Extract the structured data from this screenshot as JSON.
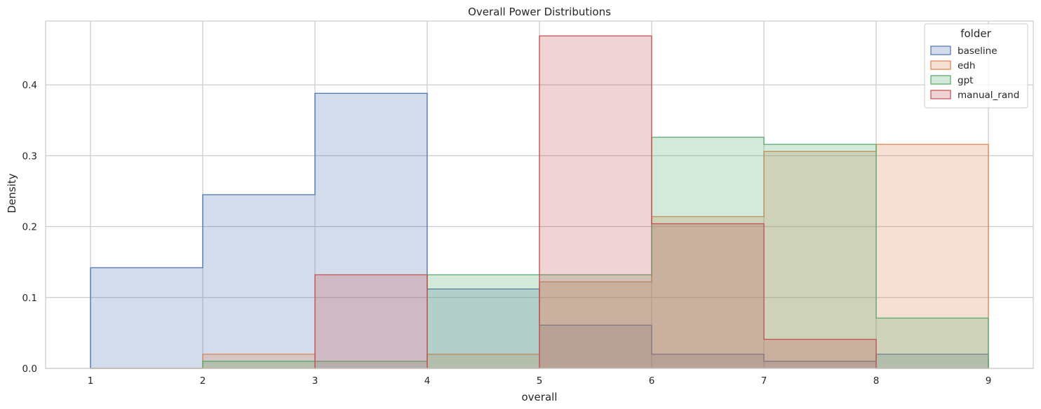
{
  "chart_data": {
    "type": "histogram-step",
    "title": "Overall Power Distributions",
    "xlabel": "overall",
    "ylabel": "Density",
    "xlim": [
      0.6,
      9.4
    ],
    "ylim": [
      0,
      0.49
    ],
    "xticks": [
      1,
      2,
      3,
      4,
      5,
      6,
      7,
      8,
      9
    ],
    "xtick_labels": [
      "1",
      "2",
      "3",
      "4",
      "5",
      "6",
      "7",
      "8",
      "9"
    ],
    "yticks": [
      0.0,
      0.1,
      0.2,
      0.3,
      0.4
    ],
    "ytick_labels": [
      "0.0",
      "0.1",
      "0.2",
      "0.3",
      "0.4"
    ],
    "grid": true,
    "legend": {
      "title": "folder",
      "placement": "top-right"
    },
    "bin_edges": [
      1,
      2,
      3,
      4,
      5,
      6,
      7,
      8,
      9
    ],
    "series": [
      {
        "name": "baseline",
        "color": "#4c72b0",
        "values": [
          0.142,
          0.245,
          0.388,
          0.112,
          0.061,
          0.02,
          0.01,
          0.02
        ]
      },
      {
        "name": "edh",
        "color": "#dd8452",
        "values": [
          0.0,
          0.02,
          0.0,
          0.02,
          0.122,
          0.214,
          0.306,
          0.316
        ]
      },
      {
        "name": "gpt",
        "color": "#55a868",
        "values": [
          0.0,
          0.01,
          0.01,
          0.132,
          0.132,
          0.326,
          0.316,
          0.071
        ]
      },
      {
        "name": "manual_rand",
        "color": "#c44e52",
        "values": [
          0.0,
          0.0,
          0.132,
          0.0,
          0.469,
          0.204,
          0.041,
          0.0
        ]
      }
    ]
  }
}
